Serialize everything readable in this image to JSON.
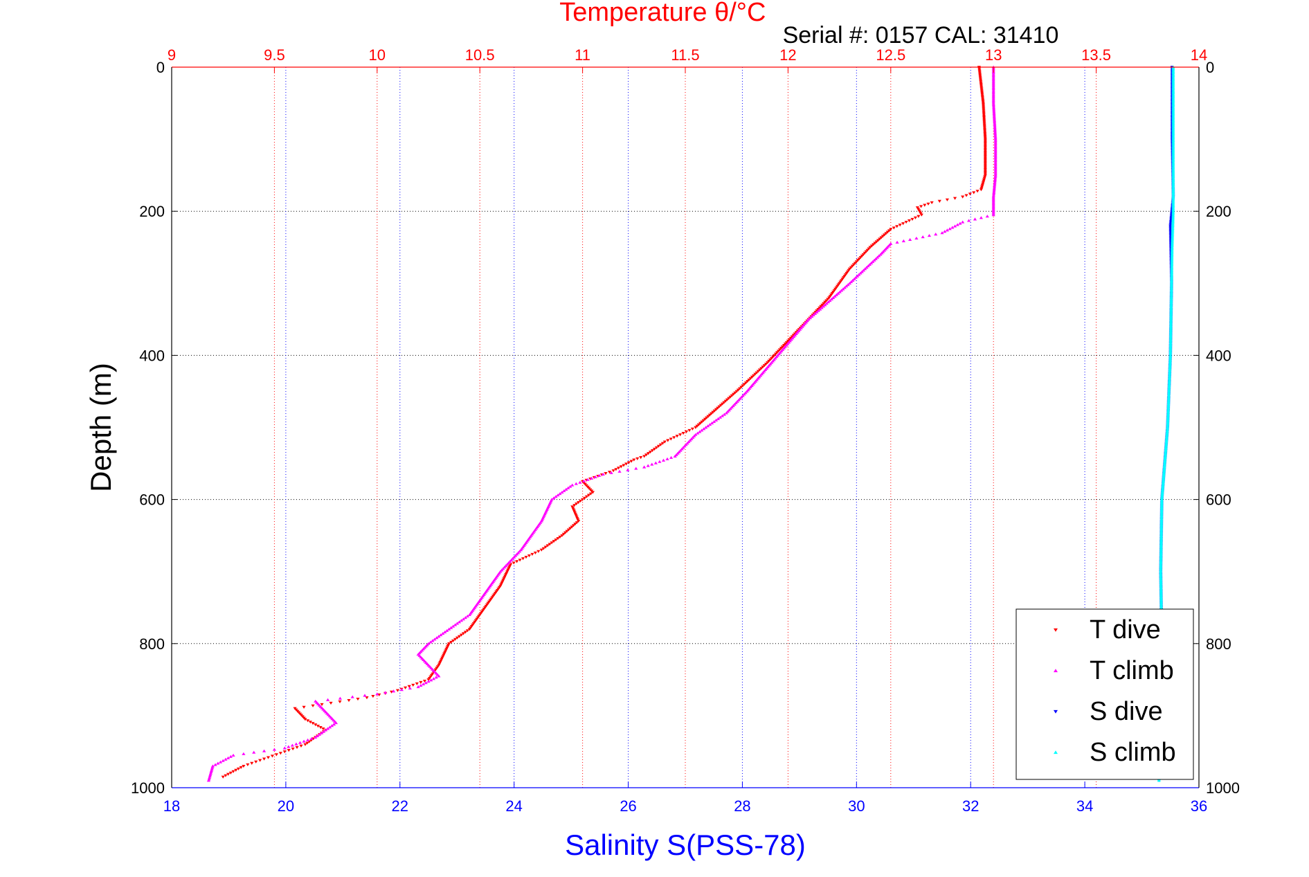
{
  "chart_data": {
    "type": "scatter",
    "title": "Temperature θ/°C",
    "subtitle": "Serial #: 0157  CAL: 31410",
    "ylabel": "Depth (m)",
    "xlabel_bottom": "Salinity S(PSS-78)",
    "y_reversed": true,
    "ylim": [
      0,
      1000
    ],
    "y_ticks": [
      0,
      200,
      400,
      600,
      800,
      1000
    ],
    "temperature_axis": {
      "position": "top",
      "xlim": [
        9,
        14
      ],
      "ticks": [
        9,
        9.5,
        10,
        10.5,
        11,
        11.5,
        12,
        12.5,
        13,
        13.5,
        14
      ],
      "color": "#ff0000"
    },
    "salinity_axis": {
      "position": "bottom",
      "xlim": [
        18,
        36
      ],
      "ticks": [
        18,
        20,
        22,
        24,
        26,
        28,
        30,
        32,
        34,
        36
      ],
      "color": "#0000ff"
    },
    "grid": true,
    "legend_position": "bottom-right",
    "series": [
      {
        "name": "T dive",
        "axis": "temperature",
        "color": "#ff0000",
        "marker": "triangle-down",
        "points": [
          [
            12.93,
            0
          ],
          [
            12.95,
            50
          ],
          [
            12.96,
            100
          ],
          [
            12.96,
            150
          ],
          [
            12.94,
            170
          ],
          [
            12.85,
            180
          ],
          [
            12.7,
            188
          ],
          [
            12.63,
            195
          ],
          [
            12.65,
            205
          ],
          [
            12.5,
            225
          ],
          [
            12.4,
            250
          ],
          [
            12.3,
            280
          ],
          [
            12.2,
            320
          ],
          [
            12.1,
            350
          ],
          [
            12.0,
            380
          ],
          [
            11.9,
            410
          ],
          [
            11.75,
            450
          ],
          [
            11.65,
            475
          ],
          [
            11.55,
            500
          ],
          [
            11.4,
            520
          ],
          [
            11.3,
            540
          ],
          [
            11.25,
            545
          ],
          [
            11.15,
            560
          ],
          [
            11.0,
            575
          ],
          [
            11.05,
            590
          ],
          [
            10.95,
            610
          ],
          [
            10.98,
            630
          ],
          [
            10.9,
            650
          ],
          [
            10.8,
            670
          ],
          [
            10.65,
            690
          ],
          [
            10.6,
            720
          ],
          [
            10.5,
            760
          ],
          [
            10.45,
            780
          ],
          [
            10.35,
            800
          ],
          [
            10.3,
            830
          ],
          [
            10.25,
            850
          ],
          [
            10.1,
            865
          ],
          [
            9.95,
            875
          ],
          [
            9.6,
            890
          ],
          [
            9.65,
            905
          ],
          [
            9.75,
            920
          ],
          [
            9.65,
            940
          ],
          [
            9.55,
            950
          ],
          [
            9.35,
            970
          ],
          [
            9.25,
            985
          ]
        ]
      },
      {
        "name": "T climb",
        "axis": "temperature",
        "color": "#ff00ff",
        "marker": "triangle-up",
        "points": [
          [
            13.0,
            0
          ],
          [
            13.0,
            50
          ],
          [
            13.01,
            100
          ],
          [
            13.01,
            150
          ],
          [
            13.0,
            180
          ],
          [
            13.0,
            205
          ],
          [
            12.85,
            215
          ],
          [
            12.75,
            230
          ],
          [
            12.5,
            245
          ],
          [
            12.45,
            260
          ],
          [
            12.3,
            300
          ],
          [
            12.1,
            350
          ],
          [
            11.95,
            400
          ],
          [
            11.8,
            450
          ],
          [
            11.7,
            480
          ],
          [
            11.55,
            510
          ],
          [
            11.45,
            540
          ],
          [
            11.3,
            555
          ],
          [
            11.1,
            565
          ],
          [
            10.95,
            580
          ],
          [
            10.85,
            600
          ],
          [
            10.8,
            630
          ],
          [
            10.75,
            650
          ],
          [
            10.7,
            670
          ],
          [
            10.6,
            700
          ],
          [
            10.55,
            720
          ],
          [
            10.45,
            760
          ],
          [
            10.35,
            780
          ],
          [
            10.25,
            800
          ],
          [
            10.2,
            815
          ],
          [
            10.25,
            830
          ],
          [
            10.3,
            845
          ],
          [
            10.2,
            860
          ],
          [
            10.0,
            870
          ],
          [
            9.7,
            880
          ],
          [
            9.75,
            895
          ],
          [
            9.8,
            910
          ],
          [
            9.7,
            930
          ],
          [
            9.55,
            945
          ],
          [
            9.3,
            955
          ],
          [
            9.2,
            970
          ],
          [
            9.18,
            990
          ]
        ]
      },
      {
        "name": "S dive",
        "axis": "salinity",
        "color": "#0000ff",
        "marker": "triangle-down",
        "points": [
          [
            35.53,
            0
          ],
          [
            35.53,
            100
          ],
          [
            35.55,
            180
          ],
          [
            35.5,
            220
          ],
          [
            35.52,
            300
          ],
          [
            35.5,
            400
          ],
          [
            35.45,
            500
          ],
          [
            35.35,
            600
          ],
          [
            35.33,
            700
          ],
          [
            35.35,
            800
          ],
          [
            35.32,
            900
          ],
          [
            35.3,
            990
          ]
        ]
      },
      {
        "name": "S climb",
        "axis": "salinity",
        "color": "#00ffff",
        "marker": "triangle-up",
        "points": [
          [
            35.55,
            0
          ],
          [
            35.55,
            100
          ],
          [
            35.55,
            200
          ],
          [
            35.53,
            250
          ],
          [
            35.52,
            300
          ],
          [
            35.5,
            400
          ],
          [
            35.45,
            500
          ],
          [
            35.35,
            600
          ],
          [
            35.33,
            700
          ],
          [
            35.35,
            800
          ],
          [
            35.32,
            900
          ],
          [
            35.3,
            990
          ]
        ]
      }
    ]
  }
}
